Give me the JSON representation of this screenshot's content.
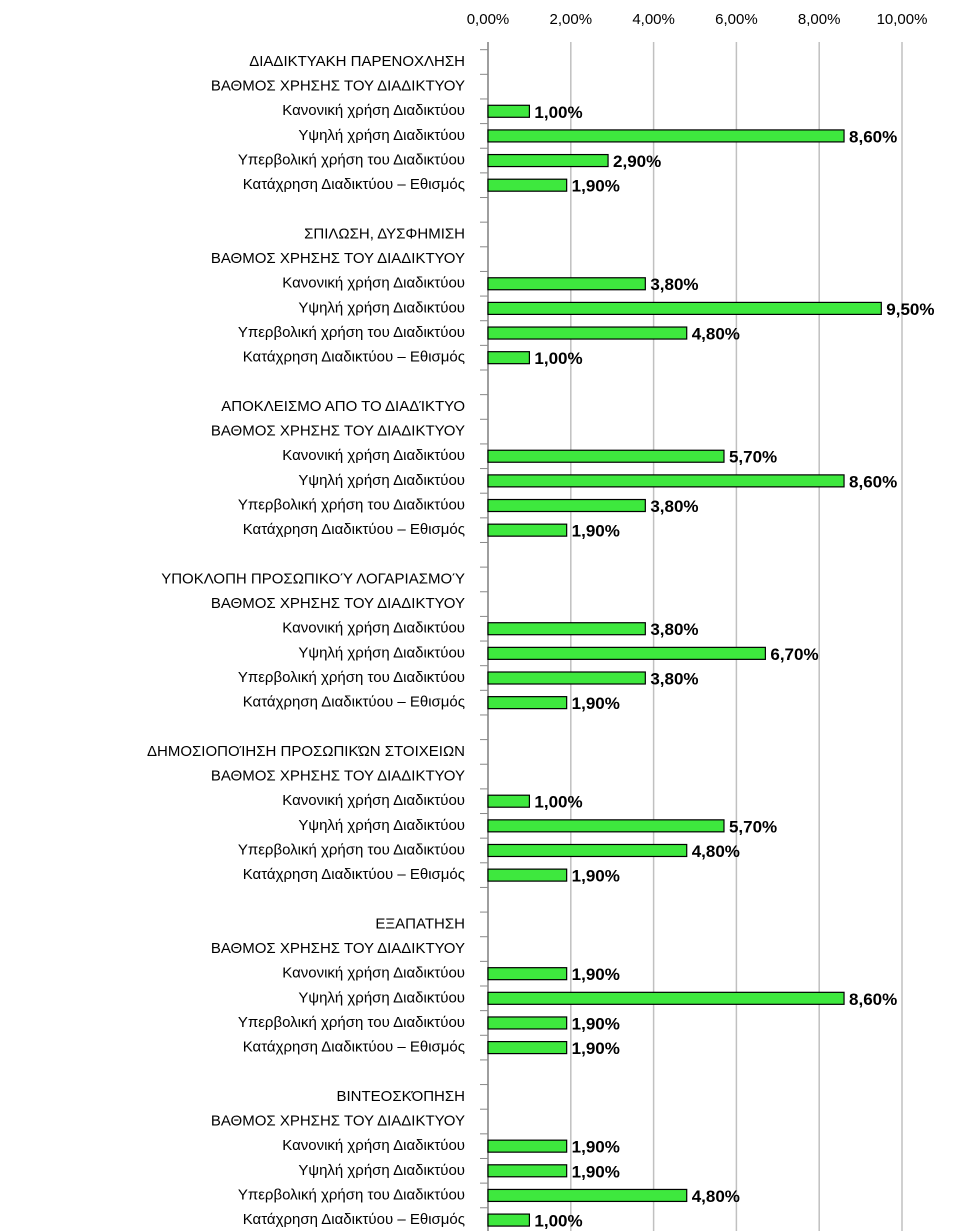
{
  "chart_data": {
    "type": "bar",
    "orientation": "horizontal",
    "color": "#3ee83e",
    "grid": true,
    "xlim": [
      0,
      10
    ],
    "xticks": [
      {
        "value": 0,
        "label": "0,00%"
      },
      {
        "value": 2,
        "label": "2,00%"
      },
      {
        "value": 4,
        "label": "4,00%"
      },
      {
        "value": 6,
        "label": "6,00%"
      },
      {
        "value": 8,
        "label": "8,00%"
      },
      {
        "value": 10,
        "label": "10,00%"
      }
    ],
    "categories": [
      "ΔΙΑΔΙΚΤΥΑΚΗ ΠΑΡΕΝΟΧΛΗΣΗ",
      "ΒΑΘΜΟΣ ΧΡΗΣΗΣ ΤΟΥ ΔΙΑΔΙΚΤΥΟΥ",
      "Κανονική χρήση Διαδικτύου",
      "Υψηλή χρήση Διαδικτύου",
      "Υπερβολική χρήση του Διαδικτύου",
      "Κατάχρηση Διαδικτύου – Εθισμός",
      null,
      "ΣΠΙΛΩΣΗ, ΔΥΣΦΗΜΙΣΗ",
      "ΒΑΘΜΟΣ ΧΡΗΣΗΣ ΤΟΥ ΔΙΑΔΙΚΤΥΟΥ",
      "Κανονική χρήση Διαδικτύου",
      "Υψηλή χρήση Διαδικτύου",
      "Υπερβολική χρήση του Διαδικτύου",
      "Κατάχρηση Διαδικτύου – Εθισμός",
      null,
      "ΑΠΟΚΛΕΙΣΜΟ ΑΠΟ ΤΟ ΔΙΑΔΊΚΤΥΟ",
      "ΒΑΘΜΟΣ ΧΡΗΣΗΣ ΤΟΥ ΔΙΑΔΙΚΤΥΟΥ",
      "Κανονική χρήση Διαδικτύου",
      "Υψηλή χρήση Διαδικτύου",
      "Υπερβολική χρήση του Διαδικτύου",
      "Κατάχρηση Διαδικτύου – Εθισμός",
      null,
      "ΥΠΟΚΛΟΠΗ ΠΡΟΣΩΠΙΚΟΎ ΛΟΓΑΡΙΑΣΜΟΎ",
      "ΒΑΘΜΟΣ ΧΡΗΣΗΣ ΤΟΥ ΔΙΑΔΙΚΤΥΟΥ",
      "Κανονική χρήση Διαδικτύου",
      "Υψηλή χρήση Διαδικτύου",
      "Υπερβολική χρήση του Διαδικτύου",
      "Κατάχρηση Διαδικτύου – Εθισμός",
      null,
      "ΔΗΜΟΣΙΟΠΟΊΗΣΗ ΠΡΟΣΩΠΙΚΏΝ ΣΤΟΙΧΕΙΩΝ",
      "ΒΑΘΜΟΣ ΧΡΗΣΗΣ ΤΟΥ ΔΙΑΔΙΚΤΥΟΥ",
      "Κανονική χρήση Διαδικτύου",
      "Υψηλή χρήση Διαδικτύου",
      "Υπερβολική χρήση του Διαδικτύου",
      "Κατάχρηση Διαδικτύου – Εθισμός",
      null,
      "ΕΞΑΠΑΤΗΣΗ",
      "ΒΑΘΜΟΣ ΧΡΗΣΗΣ ΤΟΥ ΔΙΑΔΙΚΤΥΟΥ",
      "Κανονική χρήση Διαδικτύου",
      "Υψηλή χρήση Διαδικτύου",
      "Υπερβολική χρήση του Διαδικτύου",
      "Κατάχρηση Διαδικτύου – Εθισμός",
      null,
      "ΒΙΝΤΕΟΣΚΌΠΗΣΗ",
      "ΒΑΘΜΟΣ ΧΡΗΣΗΣ ΤΟΥ ΔΙΑΔΙΚΤΥΟΥ",
      "Κανονική χρήση Διαδικτύου",
      "Υψηλή χρήση Διαδικτύου",
      "Υπερβολική χρήση του Διαδικτύου",
      "Κατάχρηση Διαδικτύου – Εθισμός"
    ],
    "values": [
      null,
      null,
      1.0,
      8.6,
      2.9,
      1.9,
      null,
      null,
      null,
      3.8,
      9.5,
      4.8,
      1.0,
      null,
      null,
      null,
      5.7,
      8.6,
      3.8,
      1.9,
      null,
      null,
      null,
      3.8,
      6.7,
      3.8,
      1.9,
      null,
      null,
      null,
      1.0,
      5.7,
      4.8,
      1.9,
      null,
      null,
      null,
      1.9,
      8.6,
      1.9,
      1.9,
      null,
      null,
      null,
      1.9,
      1.9,
      4.8,
      1.0
    ],
    "value_labels": [
      null,
      null,
      "1,00%",
      "8,60%",
      "2,90%",
      "1,90%",
      null,
      null,
      null,
      "3,80%",
      "9,50%",
      "4,80%",
      "1,00%",
      null,
      null,
      null,
      "5,70%",
      "8,60%",
      "3,80%",
      "1,90%",
      null,
      null,
      null,
      "3,80%",
      "6,70%",
      "3,80%",
      "1,90%",
      null,
      null,
      null,
      "1,00%",
      "5,70%",
      "4,80%",
      "1,90%",
      null,
      null,
      null,
      "1,90%",
      "8,60%",
      "1,90%",
      "1,90%",
      null,
      null,
      null,
      "1,90%",
      "1,90%",
      "4,80%",
      "1,00%"
    ]
  }
}
